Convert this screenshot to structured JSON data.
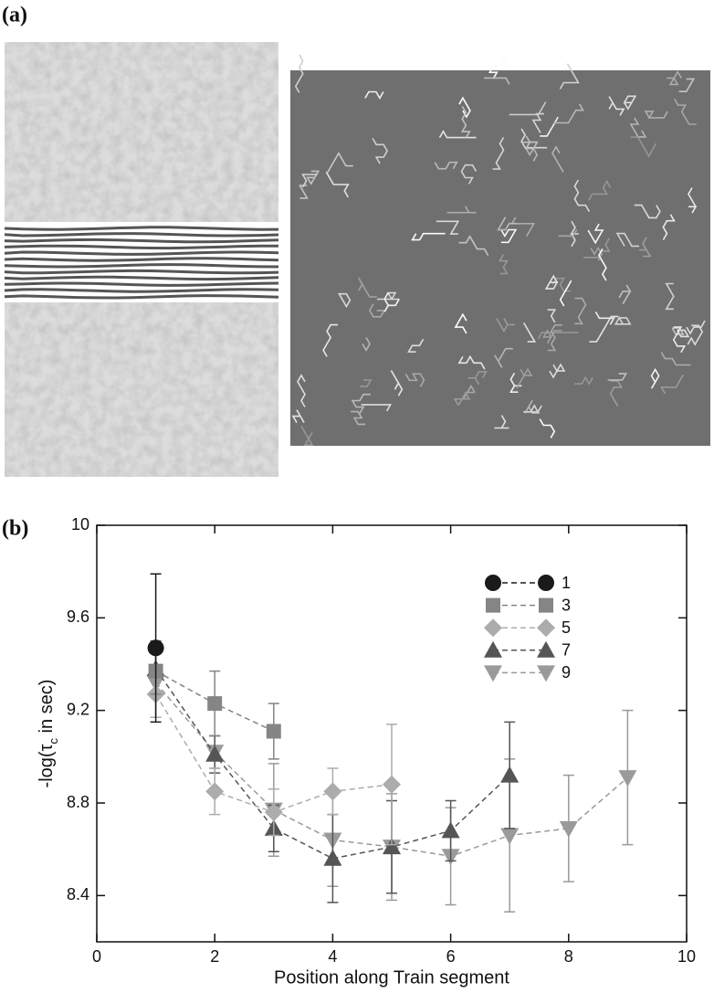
{
  "panel_labels": [
    "(a)",
    "(b)"
  ],
  "chart_data": {
    "type": "line",
    "xlabel": "Position along Train segment",
    "ylabel": {
      "pre": "-log(τ",
      "sub": "c",
      "post": " in sec)"
    },
    "xlim": [
      0,
      10
    ],
    "xticks": [
      0,
      2,
      4,
      6,
      8,
      10
    ],
    "ylim": [
      8.2,
      10
    ],
    "yticks": [
      8.4,
      8.8,
      9.2,
      9.6,
      10
    ],
    "legend": "upper right",
    "series": [
      {
        "name": "1",
        "color": "#1a1a1a",
        "marker": "circle",
        "x": [
          1
        ],
        "values": [
          9.47
        ],
        "errors": [
          0.32
        ]
      },
      {
        "name": "3",
        "color": "#858585",
        "marker": "square",
        "x": [
          1,
          2,
          3
        ],
        "values": [
          9.37,
          9.23,
          9.11
        ],
        "errors": [
          0.1,
          0.14,
          0.12
        ]
      },
      {
        "name": "5",
        "color": "#acacac",
        "marker": "diamond",
        "x": [
          1,
          2,
          3,
          4,
          5
        ],
        "values": [
          9.27,
          8.85,
          8.76,
          8.85,
          8.88
        ],
        "errors": [
          0.1,
          0.1,
          0.1,
          0.1,
          0.26
        ]
      },
      {
        "name": "7",
        "color": "#555555",
        "marker": "triangle-up",
        "x": [
          1,
          2,
          3,
          4,
          5,
          6,
          7
        ],
        "values": [
          9.38,
          9.01,
          8.69,
          8.56,
          8.61,
          8.68,
          8.92
        ],
        "errors": [
          0.12,
          0.08,
          0.1,
          0.19,
          0.2,
          0.13,
          0.23
        ]
      },
      {
        "name": "9",
        "color": "#9a9a9a",
        "marker": "triangle-down",
        "x": [
          1,
          2,
          3,
          4,
          5,
          6,
          7,
          8,
          9
        ],
        "values": [
          9.32,
          9.02,
          8.77,
          8.64,
          8.61,
          8.57,
          8.66,
          8.69,
          8.91
        ],
        "errors": [
          0.15,
          0.07,
          0.2,
          0.2,
          0.23,
          0.21,
          0.33,
          0.23,
          0.29
        ]
      }
    ]
  }
}
